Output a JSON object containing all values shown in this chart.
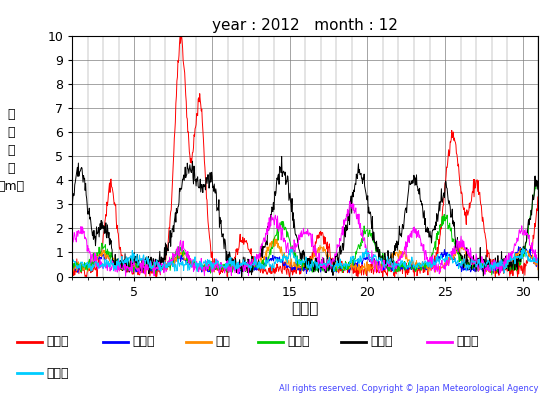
{
  "title": "year : 2012   month : 12",
  "ylabel_lines": [
    "有",
    "義",
    "波",
    "高",
    "（m）"
  ],
  "xlabel": "（日）",
  "xlim": [
    1,
    31
  ],
  "ylim": [
    0,
    10
  ],
  "yticks": [
    0,
    1,
    2,
    3,
    4,
    5,
    6,
    7,
    8,
    9,
    10
  ],
  "xticks": [
    5,
    10,
    15,
    20,
    25,
    30
  ],
  "series": [
    {
      "label": "上ノ国",
      "color": "#FF0000"
    },
    {
      "label": "江ノ島",
      "color": "#0000FF"
    },
    {
      "label": "唐桑",
      "color": "#FF8C00"
    },
    {
      "label": "石廀崎",
      "color": "#00CC00"
    },
    {
      "label": "経ヶ岸",
      "color": "#000000"
    },
    {
      "label": "生月島",
      "color": "#FF00FF"
    },
    {
      "label": "屋久島",
      "color": "#00CCFF"
    }
  ],
  "copyright": "All rights reserved. Copyright © Japan Meteorological Agency",
  "copyright_color": "#4444FF",
  "figsize": [
    5.55,
    3.95
  ],
  "dpi": 100
}
